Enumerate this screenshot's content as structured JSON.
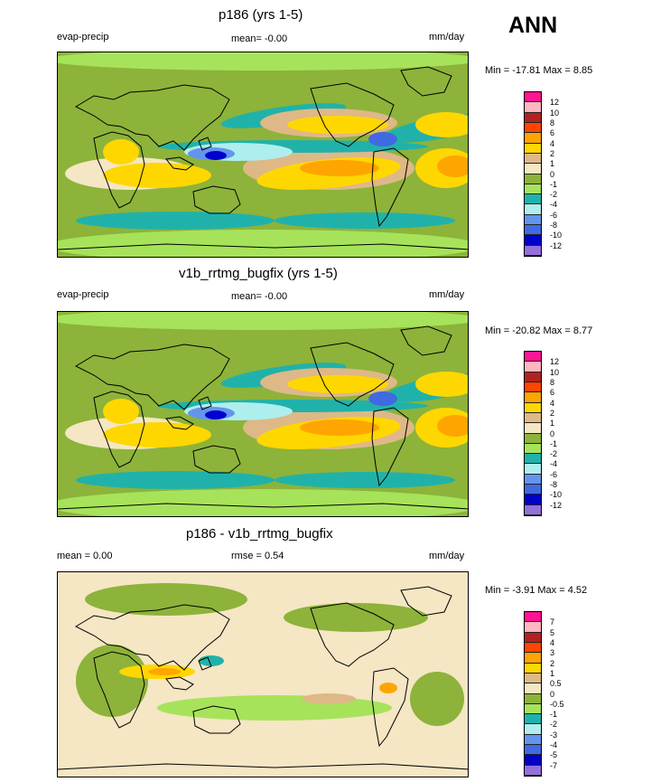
{
  "season": "ANN",
  "panels": [
    {
      "title": "p186 (yrs 1-5)",
      "left_label": "evap-precip",
      "mean_label": "mean=  -0.00",
      "units": "mm/day",
      "minmax": "Min = -17.81 Max =   8.85",
      "map_type": "climatology",
      "colorbar": {
        "colors": [
          "#ff1493",
          "#ffb6c1",
          "#b22222",
          "#ff4500",
          "#ffa500",
          "#ffd700",
          "#deb887",
          "#f5e6c4",
          "#8db33a",
          "#a6e35a",
          "#20b2aa",
          "#afeeee",
          "#6495ed",
          "#4169e1",
          "#0000cd",
          "#9370db"
        ],
        "ticks": [
          "12",
          "10",
          "8",
          "6",
          "4",
          "2",
          "1",
          "0",
          "-1",
          "-2",
          "-4",
          "-6",
          "-8",
          "-10",
          "-12"
        ]
      }
    },
    {
      "title": "v1b_rrtmg_bugfix (yrs 1-5)",
      "left_label": "evap-precip",
      "mean_label": "mean=  -0.00",
      "units": "mm/day",
      "minmax": "Min = -20.82 Max =   8.77",
      "map_type": "climatology",
      "colorbar": {
        "colors": [
          "#ff1493",
          "#ffb6c1",
          "#b22222",
          "#ff4500",
          "#ffa500",
          "#ffd700",
          "#deb887",
          "#f5e6c4",
          "#8db33a",
          "#a6e35a",
          "#20b2aa",
          "#afeeee",
          "#6495ed",
          "#4169e1",
          "#0000cd",
          "#9370db"
        ],
        "ticks": [
          "12",
          "10",
          "8",
          "6",
          "4",
          "2",
          "1",
          "0",
          "-1",
          "-2",
          "-4",
          "-6",
          "-8",
          "-10",
          "-12"
        ]
      }
    },
    {
      "title": "p186 - v1b_rrtmg_bugfix",
      "left_label": "mean =   0.00",
      "mean_label": "rmse =   0.54",
      "units": "mm/day",
      "minmax": "Min =  -3.91 Max =   4.52",
      "map_type": "difference",
      "colorbar": {
        "colors": [
          "#ff1493",
          "#ffb6c1",
          "#b22222",
          "#ff4500",
          "#ffa500",
          "#ffd700",
          "#deb887",
          "#f5e6c4",
          "#8db33a",
          "#a6e35a",
          "#20b2aa",
          "#afeeee",
          "#6495ed",
          "#4169e1",
          "#0000cd",
          "#9370db"
        ],
        "ticks": [
          "7",
          "5",
          "4",
          "3",
          "2",
          "1",
          "0.5",
          "0",
          "-0.5",
          "-1",
          "-2",
          "-3",
          "-4",
          "-5",
          "-7"
        ]
      }
    }
  ]
}
